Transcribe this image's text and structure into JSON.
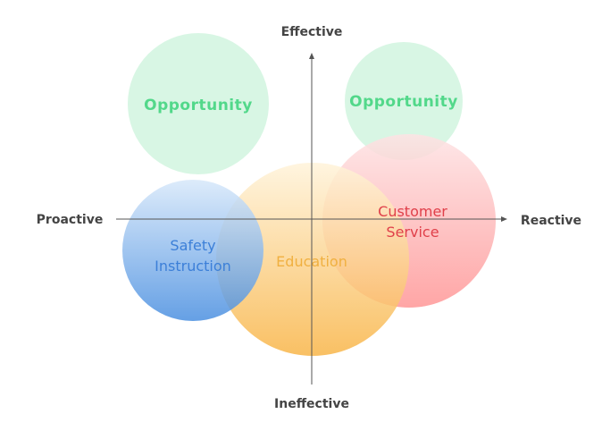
{
  "axes": {
    "top": "Effective",
    "bottom": "Ineffective",
    "left": "Proactive",
    "right": "Reactive"
  },
  "bubbles": {
    "opportunity_left": {
      "label": "Opportunity",
      "color": "#d6f5e3",
      "text_color": "#52d88a"
    },
    "opportunity_right": {
      "label": "Opportunity",
      "color": "#d6f5e3",
      "text_color": "#52d88a"
    },
    "customer_service": {
      "line1": "Customer",
      "line2": "Service",
      "color_top": "#fde3e4",
      "color_bottom": "#ff9696",
      "text_color": "#e0404a"
    },
    "education": {
      "label": "Education",
      "color_top": "#fff3da",
      "color_bottom": "#f8b548",
      "text_color": "#f0b040"
    },
    "safety_instruction": {
      "line1": "Safety",
      "line2": "Instruction",
      "color_top": "#d7e8fa",
      "color_bottom": "#4a8fe0",
      "text_color": "#3c7fd8"
    }
  }
}
